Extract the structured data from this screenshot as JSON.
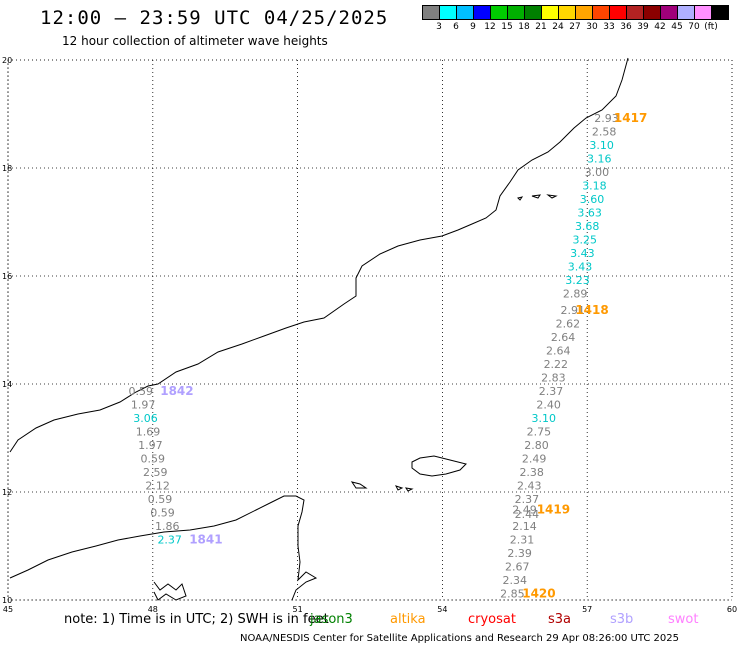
{
  "header": {
    "title": "12:00 – 23:59 UTC 04/25/2025",
    "subtitle": "12 hour collection of altimeter wave heights"
  },
  "legend": {
    "colors": [
      "#808080",
      "#00ffff",
      "#00bfff",
      "#0000ff",
      "#00cc00",
      "#00b000",
      "#008000",
      "#ffff00",
      "#ffd700",
      "#ffa500",
      "#ff4500",
      "#ff0000",
      "#b22222",
      "#8b0000",
      "#a0007a",
      "#b0b0ff",
      "#ff90ff",
      "#000000"
    ],
    "labels": [
      "3",
      "6",
      "9",
      "12",
      "15",
      "18",
      "21",
      "24",
      "27",
      "30",
      "33",
      "36",
      "39",
      "42",
      "45",
      "70",
      "(ft)"
    ]
  },
  "map": {
    "x_ticks": [
      "45",
      "48",
      "51",
      "54",
      "57",
      "60"
    ],
    "y_ticks": [
      "20",
      "18",
      "16",
      "14",
      "12",
      "10"
    ],
    "x_range": [
      45,
      60
    ],
    "y_range": [
      10,
      20
    ]
  },
  "tracks": [
    {
      "id": "1417",
      "label": "1417",
      "label_color": "#ff9900",
      "label_lon": 57.9,
      "label_lat": 18.85,
      "points": [
        {
          "lon": 57.4,
          "lat": 18.85,
          "v": "2.93",
          "c": "#808080"
        },
        {
          "lon": 57.35,
          "lat": 18.6,
          "v": "2.58",
          "c": "#808080"
        },
        {
          "lon": 57.3,
          "lat": 18.35,
          "v": "3.10",
          "c": "#00c8c8"
        },
        {
          "lon": 57.25,
          "lat": 18.1,
          "v": "3.16",
          "c": "#00c8c8"
        },
        {
          "lon": 57.2,
          "lat": 17.85,
          "v": "3.00",
          "c": "#808080"
        },
        {
          "lon": 57.15,
          "lat": 17.6,
          "v": "3.18",
          "c": "#00c8c8"
        },
        {
          "lon": 57.1,
          "lat": 17.35,
          "v": "3.60",
          "c": "#00c8c8"
        },
        {
          "lon": 57.05,
          "lat": 17.1,
          "v": "3.63",
          "c": "#00c8c8"
        },
        {
          "lon": 57.0,
          "lat": 16.85,
          "v": "3.68",
          "c": "#00c8c8"
        },
        {
          "lon": 56.95,
          "lat": 16.6,
          "v": "3.25",
          "c": "#00c8c8"
        },
        {
          "lon": 56.9,
          "lat": 16.35,
          "v": "3.43",
          "c": "#00c8c8"
        },
        {
          "lon": 56.85,
          "lat": 16.1,
          "v": "3.43",
          "c": "#00c8c8"
        },
        {
          "lon": 56.8,
          "lat": 15.85,
          "v": "3.23",
          "c": "#00c8c8"
        }
      ]
    },
    {
      "id": "1418",
      "label": "1418",
      "label_color": "#ff9900",
      "label_lon": 57.1,
      "label_lat": 15.3,
      "points": [
        {
          "lon": 56.75,
          "lat": 15.6,
          "v": "2.89",
          "c": "#808080"
        },
        {
          "lon": 56.7,
          "lat": 15.3,
          "v": "2.91",
          "c": "#808080"
        },
        {
          "lon": 56.6,
          "lat": 15.05,
          "v": "2.62",
          "c": "#808080"
        },
        {
          "lon": 56.5,
          "lat": 14.8,
          "v": "2.64",
          "c": "#808080"
        },
        {
          "lon": 56.4,
          "lat": 14.55,
          "v": "2.64",
          "c": "#808080"
        },
        {
          "lon": 56.35,
          "lat": 14.3,
          "v": "2.22",
          "c": "#808080"
        },
        {
          "lon": 56.3,
          "lat": 14.05,
          "v": "2.83",
          "c": "#808080"
        },
        {
          "lon": 56.25,
          "lat": 13.8,
          "v": "2.37",
          "c": "#808080"
        },
        {
          "lon": 56.2,
          "lat": 13.55,
          "v": "2.40",
          "c": "#808080"
        },
        {
          "lon": 56.1,
          "lat": 13.3,
          "v": "3.10",
          "c": "#00c8c8"
        },
        {
          "lon": 56.0,
          "lat": 13.05,
          "v": "2.75",
          "c": "#808080"
        },
        {
          "lon": 55.95,
          "lat": 12.8,
          "v": "2.80",
          "c": "#808080"
        },
        {
          "lon": 55.9,
          "lat": 12.55,
          "v": "2.49",
          "c": "#808080"
        },
        {
          "lon": 55.85,
          "lat": 12.3,
          "v": "2.38",
          "c": "#808080"
        },
        {
          "lon": 55.8,
          "lat": 12.05,
          "v": "2.43",
          "c": "#808080"
        },
        {
          "lon": 55.75,
          "lat": 11.8,
          "v": "2.37",
          "c": "#808080"
        }
      ]
    },
    {
      "id": "1419",
      "label": "1419",
      "label_color": "#ff9900",
      "label_lon": 56.3,
      "label_lat": 11.6,
      "points": [
        {
          "lon": 55.7,
          "lat": 11.6,
          "v": "2.49",
          "c": "#808080"
        },
        {
          "lon": 55.75,
          "lat": 11.52,
          "v": "2.44",
          "c": "#808080"
        },
        {
          "lon": 55.7,
          "lat": 11.3,
          "v": "2.14",
          "c": "#808080"
        },
        {
          "lon": 55.65,
          "lat": 11.05,
          "v": "2.31",
          "c": "#808080"
        },
        {
          "lon": 55.6,
          "lat": 10.8,
          "v": "2.39",
          "c": "#808080"
        },
        {
          "lon": 55.55,
          "lat": 10.55,
          "v": "2.67",
          "c": "#808080"
        },
        {
          "lon": 55.5,
          "lat": 10.3,
          "v": "2.34",
          "c": "#808080"
        }
      ]
    },
    {
      "id": "1420",
      "label": "1420",
      "label_color": "#ff9900",
      "label_lon": 56.0,
      "label_lat": 10.05,
      "points": [
        {
          "lon": 55.45,
          "lat": 10.05,
          "v": "2.85",
          "c": "#808080"
        }
      ]
    },
    {
      "id": "1842",
      "label": "1842",
      "label_color": "#b0a0ff",
      "label_lon": 48.5,
      "label_lat": 13.8,
      "points": [
        {
          "lon": 47.75,
          "lat": 13.8,
          "v": "0.59",
          "c": "#808080"
        },
        {
          "lon": 47.8,
          "lat": 13.55,
          "v": "1.97",
          "c": "#808080"
        },
        {
          "lon": 47.85,
          "lat": 13.3,
          "v": "3.06",
          "c": "#00c8c8"
        },
        {
          "lon": 47.9,
          "lat": 13.05,
          "v": "1.69",
          "c": "#808080"
        },
        {
          "lon": 47.95,
          "lat": 12.8,
          "v": "1.97",
          "c": "#808080"
        },
        {
          "lon": 48.0,
          "lat": 12.55,
          "v": "0.59",
          "c": "#808080"
        },
        {
          "lon": 48.05,
          "lat": 12.3,
          "v": "2.59",
          "c": "#808080"
        },
        {
          "lon": 48.1,
          "lat": 12.05,
          "v": "2.12",
          "c": "#808080"
        },
        {
          "lon": 48.15,
          "lat": 11.8,
          "v": "0.59",
          "c": "#808080"
        },
        {
          "lon": 48.2,
          "lat": 11.55,
          "v": "0.59",
          "c": "#808080"
        },
        {
          "lon": 48.3,
          "lat": 11.3,
          "v": "1.86",
          "c": "#808080"
        }
      ]
    },
    {
      "id": "1841",
      "label": "1841",
      "label_color": "#b0a0ff",
      "label_lon": 49.1,
      "label_lat": 11.05,
      "points": [
        {
          "lon": 48.35,
          "lat": 11.05,
          "v": "2.37",
          "c": "#00c8c8"
        }
      ]
    }
  ],
  "footer": {
    "note": "note: 1) Time is in UTC; 2) SWH is in feet",
    "satellites": [
      {
        "name": "jason3",
        "color": "#008000"
      },
      {
        "name": "altika",
        "color": "#ff9900"
      },
      {
        "name": "cryosat",
        "color": "#ff0000"
      },
      {
        "name": "s3a",
        "color": "#b00000"
      },
      {
        "name": "s3b",
        "color": "#b0a0ff"
      },
      {
        "name": "swot",
        "color": "#ff80ff"
      }
    ],
    "credit": "NOAA/NESDIS Center for Satellite Applications and Research     29 Apr 08:26:00 UTC 2025"
  }
}
